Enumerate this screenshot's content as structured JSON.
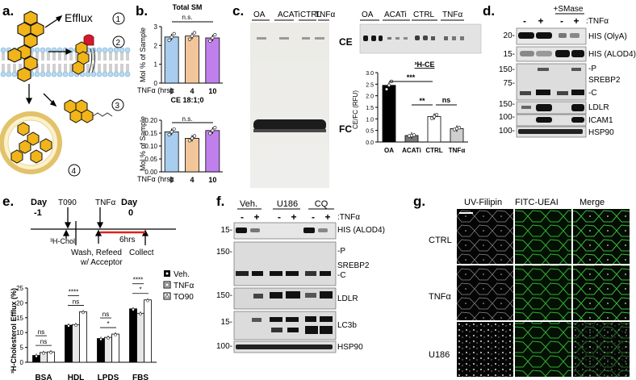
{
  "panel_labels": {
    "a": "a.",
    "b": "b.",
    "c": "c.",
    "d": "d.",
    "e": "e.",
    "f": "f.",
    "g": "g."
  },
  "panel_a": {
    "efflux": "Efflux",
    "n1": "1",
    "n2": "2",
    "n3": "3",
    "n4": "4"
  },
  "panel_b": {
    "ylabel": "Mol % of Sample",
    "xlabel": "TNFα (hrs):",
    "bar_colors": [
      "#a8cdee",
      "#f3c69a",
      "#c080ec"
    ],
    "charts": [
      {
        "title": "Total SM",
        "categories": [
          "0",
          "4",
          "10"
        ],
        "ns": "n.s.",
        "ticks": [
          "0",
          "1",
          "2",
          "3"
        ]
      },
      {
        "title": "CE 18:1;0",
        "categories": [
          "0",
          "4",
          "10"
        ],
        "ns": "n.s.",
        "ticks": [
          "0.00",
          "0.05",
          "0.10",
          "0.15",
          "0.20"
        ]
      }
    ]
  },
  "panel_c": {
    "tlc_lanes": [
      "OA",
      "ACATi",
      "CTRL",
      "TNFα"
    ],
    "ce": "CE",
    "fc": "FC",
    "chart_title": "³H-CE",
    "ylabel": "CE/FC (RFU)",
    "ticks": [
      "0.0",
      "0.5",
      "1.0",
      "1.5",
      "2.0",
      "2.5",
      "3.0"
    ],
    "categories": [
      "OA",
      "ACATi",
      "CTRL",
      "TNFα"
    ],
    "sig": [
      "***",
      "**",
      "ns"
    ]
  },
  "panel_d": {
    "smase": "+SMase",
    "signs": [
      "-",
      "+",
      "-",
      "+"
    ],
    "tnf": ":TNFα",
    "mw": [
      "20-",
      "15-",
      "150-",
      "75-",
      "150-",
      "100-",
      "100-"
    ],
    "bands": [
      "HIS (OlyA)",
      "HIS (ALOD4)",
      "-P",
      "SREBP2",
      "-C",
      "LDLR",
      "ICAM1",
      "HSP90"
    ]
  },
  "panel_e": {
    "timeline": {
      "day1": "Day",
      "day1n": "-1",
      "t090": "T090",
      "chol": "³H-Chol",
      "tnf": "TNFα",
      "wash": "Wash, Refeed",
      "acceptor": "w/ Acceptor",
      "day0": "Day",
      "day0n": "0",
      "hrs": "6hrs",
      "collect": "Collect"
    },
    "ylabel": "³H-Cholesterol Efflux (%)",
    "ticks": [
      "0",
      "5",
      "10",
      "15",
      "20",
      "25"
    ],
    "categories": [
      "BSA",
      "HDL",
      "LPDS",
      "FBS"
    ],
    "legend": [
      "Veh.",
      "TNFα",
      "TO90"
    ],
    "sig": [
      "ns",
      "ns",
      "****",
      "ns",
      "ns",
      "*",
      "****",
      "*"
    ]
  },
  "panel_f": {
    "groups": [
      "Veh.",
      "U186",
      "CQ"
    ],
    "signs": [
      "-",
      "+",
      "-",
      "+",
      "-",
      "+"
    ],
    "tnf": ":TNFα",
    "mw": [
      "15-",
      "150-",
      "150-",
      "15-",
      "100-"
    ],
    "bands": [
      "HIS (ALOD4)",
      "-P",
      "SREBP2",
      "-C",
      "LDLR",
      "LC3b",
      "HSP90"
    ]
  },
  "panel_g": {
    "cols": [
      "UV-Filipin",
      "FITC-UEAI",
      "Merge"
    ],
    "rows": [
      "CTRL",
      "TNFα",
      "U186"
    ]
  },
  "chart_data": [
    {
      "type": "bar",
      "title": "Total SM",
      "xlabel": "TNFα (hrs):",
      "ylabel": "Mol % of Sample",
      "categories": [
        "0",
        "4",
        "10"
      ],
      "values": [
        2.45,
        2.5,
        2.4
      ],
      "ylim": [
        0,
        3
      ]
    },
    {
      "type": "bar",
      "title": "CE 18:1;0",
      "xlabel": "TNFα (hrs):",
      "ylabel": "Mol % of Sample",
      "categories": [
        "0",
        "4",
        "10"
      ],
      "values": [
        0.155,
        0.13,
        0.16
      ],
      "ylim": [
        0,
        0.2
      ]
    },
    {
      "type": "bar",
      "title": "³H-CE",
      "ylabel": "CE/FC (RFU)",
      "categories": [
        "OA",
        "ACATi",
        "CTRL",
        "TNFα"
      ],
      "values": [
        2.45,
        0.28,
        1.1,
        0.58
      ],
      "ylim": [
        0,
        3
      ]
    },
    {
      "type": "bar",
      "ylabel": "³H-Cholesterol Efflux (%)",
      "categories": [
        "BSA",
        "HDL",
        "LPDS",
        "FBS"
      ],
      "series": [
        {
          "name": "Veh.",
          "values": [
            2.3,
            12.5,
            8.0,
            18.0
          ]
        },
        {
          "name": "TNFα",
          "values": [
            3.3,
            12.7,
            8.4,
            16.5
          ]
        },
        {
          "name": "TO90",
          "values": [
            3.5,
            17.0,
            9.5,
            21.0
          ]
        }
      ],
      "ylim": [
        0,
        25
      ]
    }
  ]
}
